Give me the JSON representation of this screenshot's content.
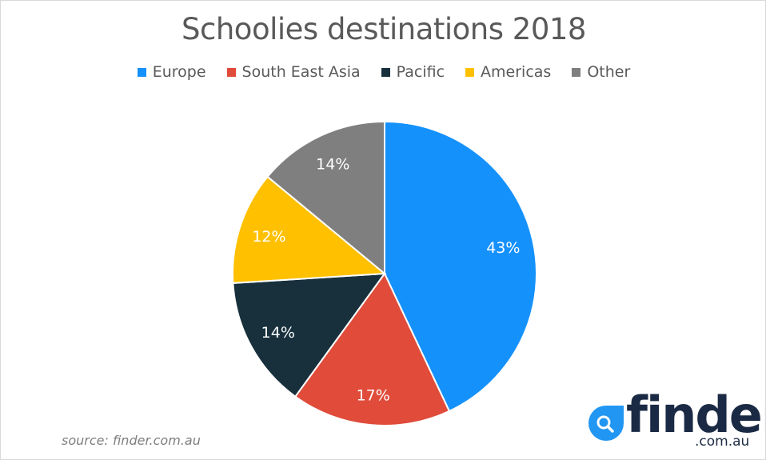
{
  "chart_data": {
    "type": "pie",
    "title": "Schoolies destinations 2018",
    "legend_position": "top",
    "start": "12 o'clock, clockwise",
    "slices": [
      {
        "name": "Europe",
        "value": 43,
        "label": "43%",
        "color": "#1591fc"
      },
      {
        "name": "South East Asia",
        "value": 17,
        "label": "17%",
        "color": "#e04b3a"
      },
      {
        "name": "Pacific",
        "value": 14,
        "label": "14%",
        "color": "#17303c"
      },
      {
        "name": "Americas",
        "value": 12,
        "label": "12%",
        "color": "#ffc000"
      },
      {
        "name": "Other",
        "value": 14,
        "label": "14%",
        "color": "#7f7f7f"
      }
    ]
  },
  "source": "source: finder.com.au",
  "logo": {
    "word": "finder",
    "tld": ".com.au",
    "color": "#1b2a44",
    "accent": "#2196f3"
  }
}
